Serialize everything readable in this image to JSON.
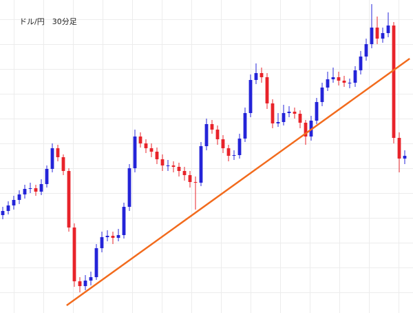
{
  "chart_data": {
    "type": "candlestick",
    "title": "ドル/円　30分足",
    "up_color": "#2424d8",
    "down_color": "#e8232a",
    "xlim": [
      -0.5,
      74.5
    ],
    "ylim": [
      0,
      454
    ],
    "open": [
      142,
      148,
      156,
      164,
      172,
      180,
      181,
      176,
      187,
      209,
      239,
      226,
      206,
      124,
      46,
      39,
      47,
      52,
      94,
      110,
      112,
      109,
      113,
      154,
      210,
      256,
      246,
      239,
      234,
      223,
      214,
      214,
      212,
      206,
      200,
      190,
      189,
      242,
      274,
      266,
      252,
      239,
      228,
      229,
      253,
      290,
      338,
      348,
      342,
      304,
      275,
      277,
      290,
      292,
      289,
      276,
      256,
      279,
      306,
      327,
      339,
      342,
      337,
      334,
      334,
      352,
      372,
      390,
      414,
      398,
      406,
      417,
      254,
      224
    ],
    "high": [
      154,
      162,
      170,
      178,
      186,
      189,
      186,
      194,
      214,
      246,
      244,
      230,
      210,
      130,
      52,
      55,
      60,
      100,
      118,
      120,
      118,
      122,
      160,
      216,
      266,
      262,
      252,
      246,
      240,
      230,
      222,
      220,
      218,
      212,
      206,
      198,
      248,
      282,
      280,
      272,
      258,
      244,
      236,
      260,
      298,
      346,
      362,
      356,
      348,
      310,
      290,
      302,
      300,
      298,
      294,
      280,
      286,
      312,
      334,
      350,
      356,
      350,
      344,
      340,
      358,
      380,
      398,
      448,
      430,
      414,
      436,
      422,
      262,
      236
    ],
    "low": [
      136,
      143,
      150,
      158,
      166,
      174,
      170,
      171,
      182,
      204,
      220,
      200,
      118,
      38,
      30,
      33,
      40,
      48,
      88,
      104,
      100,
      104,
      108,
      148,
      204,
      240,
      232,
      226,
      216,
      206,
      206,
      204,
      198,
      192,
      182,
      150,
      184,
      236,
      260,
      244,
      232,
      220,
      222,
      224,
      248,
      284,
      332,
      334,
      296,
      268,
      270,
      272,
      284,
      282,
      268,
      244,
      250,
      274,
      300,
      322,
      334,
      330,
      328,
      326,
      328,
      346,
      366,
      384,
      390,
      392,
      400,
      246,
      204,
      216
    ],
    "close": [
      148,
      156,
      164,
      172,
      180,
      181,
      176,
      187,
      209,
      239,
      226,
      206,
      124,
      46,
      39,
      47,
      52,
      94,
      110,
      112,
      109,
      113,
      154,
      210,
      256,
      246,
      239,
      234,
      223,
      214,
      214,
      212,
      206,
      200,
      190,
      189,
      242,
      274,
      266,
      252,
      239,
      228,
      229,
      253,
      290,
      338,
      348,
      342,
      304,
      275,
      277,
      290,
      292,
      289,
      276,
      256,
      279,
      306,
      327,
      339,
      342,
      337,
      334,
      334,
      352,
      372,
      390,
      414,
      398,
      406,
      417,
      254,
      224,
      228
    ],
    "trendline": {
      "x": [
        11.6,
        73.9
      ],
      "y": [
        11,
        369
      ],
      "color": "#f26b1d"
    }
  }
}
